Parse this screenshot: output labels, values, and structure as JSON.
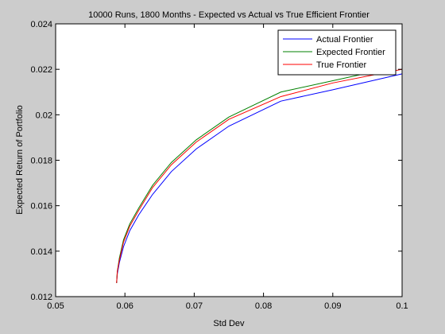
{
  "chart_data": {
    "type": "line",
    "title": "10000 Runs, 1800 Months - Expected vs Actual vs True Efficient Frontier",
    "xlabel": "Std Dev",
    "ylabel": "Expected Return of Portfolio",
    "xlim": [
      0.05,
      0.1
    ],
    "ylim": [
      0.012,
      0.024
    ],
    "xticks": [
      0.05,
      0.06,
      0.07,
      0.08,
      0.09,
      0.1
    ],
    "xtick_labels": [
      "0.05",
      "0.06",
      "0.07",
      "0.08",
      "0.09",
      "0.1"
    ],
    "yticks": [
      0.012,
      0.014,
      0.016,
      0.018,
      0.02,
      0.022,
      0.024
    ],
    "ytick_labels": [
      "0.012",
      "0.014",
      "0.016",
      "0.018",
      "0.02",
      "0.022",
      "0.024"
    ],
    "grid": false,
    "legend_position": "top-right",
    "series": [
      {
        "name": "Actual Frontier",
        "color": "#0000ff",
        "x": [
          0.0588,
          0.0589,
          0.0592,
          0.0598,
          0.0607,
          0.062,
          0.064,
          0.0667,
          0.0703,
          0.075,
          0.0825,
          0.09,
          0.1
        ],
        "y": [
          0.0126,
          0.013,
          0.0135,
          0.0142,
          0.0149,
          0.0156,
          0.0165,
          0.0175,
          0.0185,
          0.0195,
          0.0206,
          0.0211,
          0.0218
        ]
      },
      {
        "name": "Expected Frontier",
        "color": "#008000",
        "x": [
          0.0588,
          0.0589,
          0.0592,
          0.0598,
          0.0607,
          0.062,
          0.064,
          0.0667,
          0.0703,
          0.075,
          0.0825,
          0.09,
          0.099
        ],
        "y": [
          0.0126,
          0.0131,
          0.0137,
          0.0145,
          0.0152,
          0.0159,
          0.0169,
          0.0179,
          0.0189,
          0.0199,
          0.021,
          0.0215,
          0.0221
        ]
      },
      {
        "name": "True Frontier",
        "color": "#ff0000",
        "x": [
          0.0588,
          0.0589,
          0.0592,
          0.0598,
          0.0607,
          0.062,
          0.064,
          0.0667,
          0.0703,
          0.075,
          0.0825,
          0.09,
          0.1
        ],
        "y": [
          0.0126,
          0.0131,
          0.0136,
          0.0144,
          0.0151,
          0.0158,
          0.0168,
          0.0178,
          0.0188,
          0.0198,
          0.0208,
          0.0214,
          0.022
        ]
      }
    ]
  }
}
